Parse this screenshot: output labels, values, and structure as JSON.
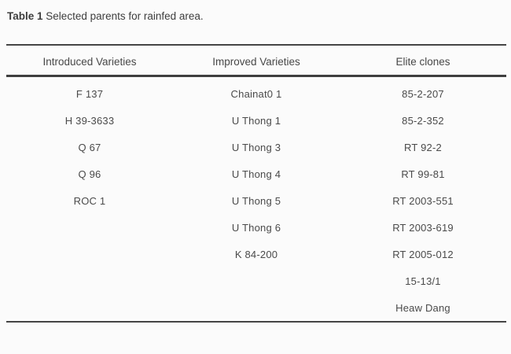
{
  "document": {
    "table_label": "Table 1",
    "caption": "Selected parents for rainfed area.",
    "columns": [
      "Introduced Varieties",
      "Improved Varieties",
      "Elite clones"
    ],
    "rows": [
      [
        "F 137",
        "Chainat0 1",
        "85-2-207"
      ],
      [
        "H 39-3633",
        "U Thong 1",
        "85-2-352"
      ],
      [
        "Q 67",
        "U Thong 3",
        "RT 92-2"
      ],
      [
        "Q 96",
        "U Thong 4",
        "RT 99-81"
      ],
      [
        "ROC 1",
        "U Thong 5",
        "RT 2003-551"
      ],
      [
        "",
        "U Thong 6",
        "RT 2003-619"
      ],
      [
        "",
        "K 84-200",
        "RT 2005-012"
      ],
      [
        "",
        "",
        "15-13/1"
      ],
      [
        "",
        "",
        "Heaw Dang"
      ]
    ],
    "colors": {
      "background": "#fbfbfb",
      "text": "#4a4a4a",
      "rule": "#454545"
    }
  }
}
